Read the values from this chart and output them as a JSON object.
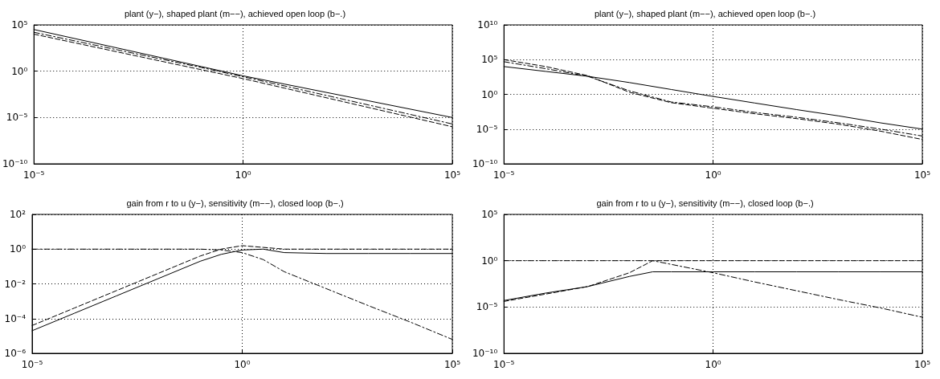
{
  "chart_data": [
    {
      "type": "line",
      "title": "plant (y−), shaped plant (m−−), achieved open loop (b−.)",
      "log": "xy",
      "grid": true,
      "xlim": [
        1e-05,
        100000
      ],
      "ylim": [
        1e-10,
        100000
      ],
      "xticks": [
        {
          "value": 1e-05,
          "label": "10⁻⁵"
        },
        {
          "value": 1,
          "label": "10⁰"
        },
        {
          "value": 100000,
          "label": "10⁵"
        }
      ],
      "yticks": [
        {
          "value": 1e-10,
          "label": "10⁻¹⁰"
        },
        {
          "value": 1e-05,
          "label": "10⁻⁵"
        },
        {
          "value": 1,
          "label": "10⁰"
        },
        {
          "value": 100000,
          "label": "10⁵"
        }
      ],
      "x": [
        1e-05,
        0.001,
        0.1,
        1,
        10,
        1000,
        100000
      ],
      "series": [
        {
          "color": "#000000",
          "line_style": "solid",
          "values": [
            31623,
            316,
            3.16,
            0.316,
            0.0398,
            0.00063,
            1e-05
          ]
        },
        {
          "color": "#000000",
          "line_style": "dashed",
          "values": [
            10000,
            120,
            1.45,
            0.158,
            0.0145,
            0.00012,
            1e-06
          ]
        },
        {
          "color": "#000000",
          "line_style": "dashdot",
          "values": [
            15849,
            200,
            2.5,
            0.251,
            0.025,
            0.000224,
            2e-06
          ]
        }
      ]
    },
    {
      "type": "line",
      "title": "plant (y−), shaped plant (m−−), achieved open loop (b−.)",
      "log": "xy",
      "grid": true,
      "xlim": [
        1e-05,
        100000
      ],
      "ylim": [
        1e-10,
        10000000000.0
      ],
      "xticks": [
        {
          "value": 1e-05,
          "label": "10⁻⁵"
        },
        {
          "value": 1,
          "label": "10⁰"
        },
        {
          "value": 100000,
          "label": "10⁵"
        }
      ],
      "yticks": [
        {
          "value": 1e-10,
          "label": "10⁻¹⁰"
        },
        {
          "value": 1e-05,
          "label": "10⁻⁵"
        },
        {
          "value": 1,
          "label": "10⁰"
        },
        {
          "value": 100000,
          "label": "10⁵"
        },
        {
          "value": 10000000000.0,
          "label": "10¹⁰"
        }
      ],
      "x": [
        1e-05,
        0.0001,
        0.001,
        0.01,
        0.1,
        1,
        10,
        100,
        1000,
        10000,
        100000
      ],
      "series": [
        {
          "color": "#000000",
          "line_style": "solid",
          "values": [
            10000,
            2000,
            400,
            50,
            5,
            0.5,
            0.056,
            0.0063,
            0.00079,
            7.9e-05,
            1e-05
          ]
        },
        {
          "color": "#000000",
          "line_style": "dashed",
          "values": [
            100000,
            10000,
            500,
            2,
            0.063,
            0.01,
            0.0016,
            0.00032,
            5e-05,
            5e-06,
            3.2e-07
          ]
        },
        {
          "color": "#000000",
          "line_style": "dashdot",
          "values": [
            50000,
            5000,
            400,
            3.2,
            0.079,
            0.016,
            0.0025,
            0.0005,
            7.9e-05,
            1e-05,
            1e-06
          ]
        }
      ]
    },
    {
      "type": "line",
      "title": "gain from r to u (y−), sensitivity (m−−), closed loop (b−.)",
      "log": "xy",
      "grid": true,
      "xlim": [
        1e-05,
        100000
      ],
      "ylim": [
        1e-06,
        100
      ],
      "xticks": [
        {
          "value": 1e-05,
          "label": "10⁻⁵"
        },
        {
          "value": 1,
          "label": "10⁰"
        },
        {
          "value": 100000,
          "label": "10⁵"
        }
      ],
      "yticks": [
        {
          "value": 1e-06,
          "label": "10⁻⁶"
        },
        {
          "value": 0.0001,
          "label": "10⁻⁴"
        },
        {
          "value": 0.01,
          "label": "10⁻²"
        },
        {
          "value": 1,
          "label": "10⁰"
        },
        {
          "value": 100,
          "label": "10²"
        }
      ],
      "x": [
        1e-05,
        0.0001,
        0.001,
        0.01,
        0.1,
        0.316,
        1,
        3.16,
        10,
        100,
        1000,
        10000,
        100000
      ],
      "series": [
        {
          "color": "#000000",
          "line_style": "solid",
          "values": [
            2e-05,
            0.0002,
            0.002,
            0.02,
            0.2,
            0.5,
            0.89,
            1,
            0.63,
            0.56,
            0.56,
            0.56,
            0.56
          ]
        },
        {
          "color": "#000000",
          "line_style": "dashed",
          "values": [
            4e-05,
            0.0004,
            0.004,
            0.04,
            0.4,
            1,
            1.58,
            1.26,
            1,
            1,
            1,
            1,
            1
          ]
        },
        {
          "color": "#000000",
          "line_style": "dashdot",
          "values": [
            1,
            1,
            1,
            1,
            1,
            0.89,
            0.63,
            0.25,
            0.05,
            0.0053,
            0.00056,
            6.3e-05,
            6.3e-06
          ]
        }
      ]
    },
    {
      "type": "line",
      "title": "gain from r to u (y−), sensitivity (m−−), closed loop (b−.)",
      "log": "xy",
      "grid": true,
      "xlim": [
        1e-05,
        100000
      ],
      "ylim": [
        1e-10,
        100000
      ],
      "xticks": [
        {
          "value": 1e-05,
          "label": "10⁻⁵"
        },
        {
          "value": 1,
          "label": "10⁰"
        },
        {
          "value": 100000,
          "label": "10⁵"
        }
      ],
      "yticks": [
        {
          "value": 1e-10,
          "label": "10⁻¹⁰"
        },
        {
          "value": 1e-05,
          "label": "10⁻⁵"
        },
        {
          "value": 1,
          "label": "10⁰"
        },
        {
          "value": 100000,
          "label": "10⁵"
        }
      ],
      "x": [
        1e-05,
        0.0001,
        0.001,
        0.01,
        0.036,
        0.1,
        1,
        10,
        100,
        1000,
        10000,
        100000
      ],
      "series": [
        {
          "color": "#000000",
          "line_style": "solid",
          "values": [
            5e-05,
            0.00032,
            0.0016,
            0.02,
            0.063,
            0.063,
            0.063,
            0.063,
            0.063,
            0.063,
            0.063,
            0.063
          ]
        },
        {
          "color": "#000000",
          "line_style": "dashed",
          "values": [
            4e-05,
            0.00025,
            0.0016,
            0.05,
            1,
            1,
            1,
            1,
            1,
            1,
            1,
            1
          ]
        },
        {
          "color": "#000000",
          "line_style": "dashdot",
          "values": [
            1,
            1,
            1,
            1,
            1,
            0.4,
            0.05,
            0.005,
            0.00056,
            6.3e-05,
            7.9e-06,
            7.9e-07
          ]
        }
      ]
    }
  ]
}
